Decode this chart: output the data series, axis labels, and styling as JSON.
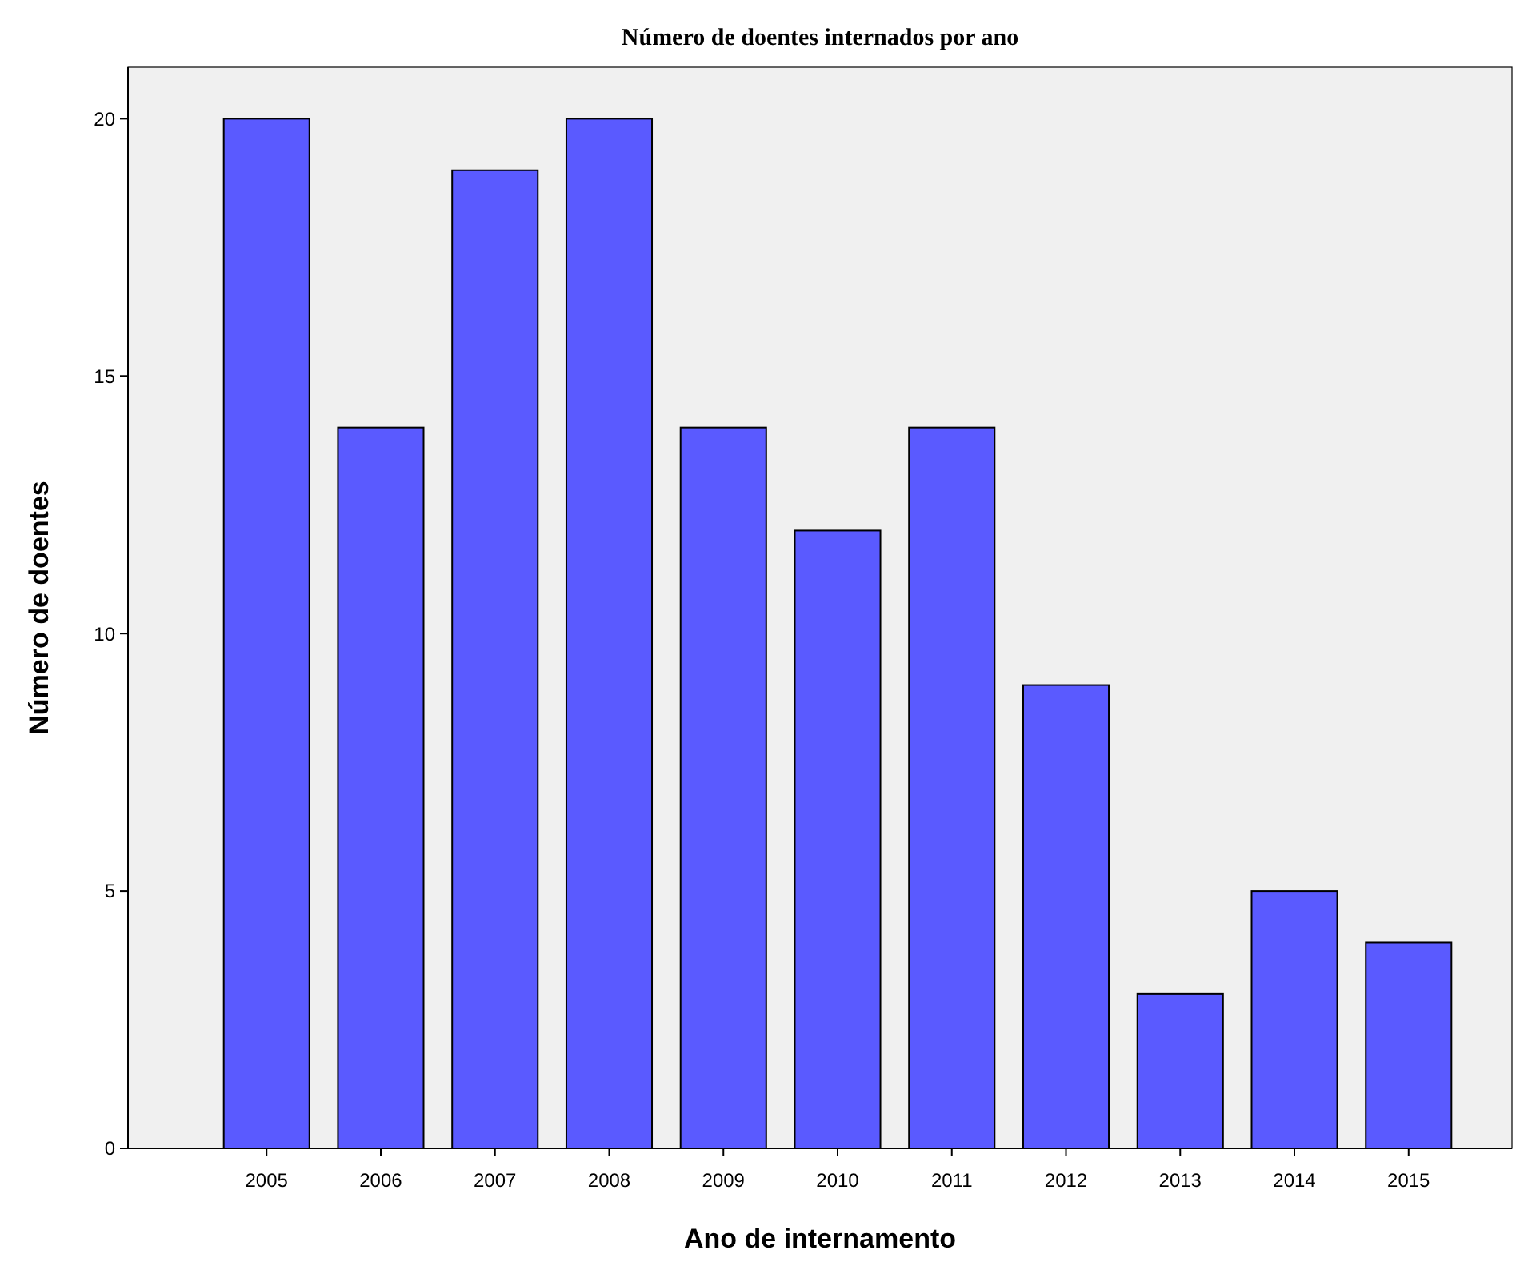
{
  "chart_data": {
    "type": "bar",
    "title": "Número de doentes internados por ano",
    "xlabel": "Ano de internamento",
    "ylabel": "Número de doentes",
    "categories": [
      "2005",
      "2006",
      "2007",
      "2008",
      "2009",
      "2010",
      "2011",
      "2012",
      "2013",
      "2014",
      "2015"
    ],
    "values": [
      20,
      14,
      19,
      20,
      14,
      12,
      14,
      9,
      3,
      5,
      4
    ],
    "color": "#5a5aff",
    "ylim": [
      0,
      21
    ],
    "yticks": [
      0,
      5,
      10,
      15,
      20
    ]
  }
}
